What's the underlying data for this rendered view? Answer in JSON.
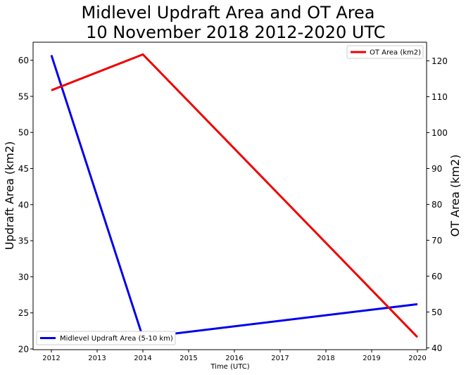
{
  "chart_data": {
    "type": "line",
    "title_line1": "Midlevel Updraft Area and OT Area",
    "title_line2": " 10 November 2018 2012-2020 UTC",
    "xlabel": "Time (UTC)",
    "ylabel_left": "Updraft Area (km2)",
    "ylabel_right": "OT Area (km2)",
    "xlim": [
      2011.6,
      2020.2
    ],
    "ylim_left": [
      19.9,
      62.5
    ],
    "ylim_right": [
      39.5,
      125.2
    ],
    "x_ticks": [
      2012,
      2013,
      2014,
      2015,
      2016,
      2017,
      2018,
      2019,
      2020
    ],
    "y_ticks_left": [
      20,
      25,
      30,
      35,
      40,
      45,
      50,
      55,
      60
    ],
    "y_ticks_right": [
      40,
      50,
      60,
      70,
      80,
      90,
      100,
      110,
      120
    ],
    "grid": false,
    "series": [
      {
        "name": "Midlevel Updraft Area (5-10 km)",
        "axis": "left",
        "color": "#0000ee",
        "legend_position": "lower-left",
        "x": [
          2012,
          2014,
          2020
        ],
        "y": [
          60.7,
          21.6,
          26.2
        ]
      },
      {
        "name": "OT Area (km2)",
        "axis": "right",
        "color": "#ee0000",
        "legend_position": "upper-right",
        "x": [
          2012,
          2014,
          2020
        ],
        "y": [
          111.8,
          121.8,
          43.0
        ]
      }
    ]
  }
}
